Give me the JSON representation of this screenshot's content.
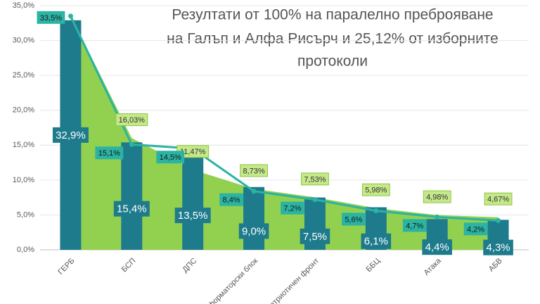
{
  "chart_data": {
    "type": "combo",
    "title": [
      "Резултати от 100% на паралелно преброяване",
      "на Галъп и Алфа Рисърч и 25,12% от изборните",
      "протоколи"
    ],
    "categories": [
      "ГЕРБ",
      "БСП",
      "ДПС",
      "Реформаторски блок",
      "Патриотичен фронт",
      "ББЦ",
      "Атака",
      "АБВ"
    ],
    "ylim": [
      0,
      35
    ],
    "yticks": [
      {
        "value": 0,
        "label": "0,0%"
      },
      {
        "value": 5,
        "label": "5,0%"
      },
      {
        "value": 10,
        "label": "10,0%"
      },
      {
        "value": 15,
        "label": "15,0%"
      },
      {
        "value": 20,
        "label": "20,0%"
      },
      {
        "value": 25,
        "label": "25,0%"
      },
      {
        "value": 30,
        "label": "30,0%"
      },
      {
        "value": 35,
        "label": "35,0%"
      }
    ],
    "series": [
      {
        "kind": "area",
        "color": "#92d050",
        "values": [
          33.6,
          16.03,
          11.47,
          8.73,
          7.53,
          5.98,
          4.98,
          4.67
        ],
        "value_labels": [
          null,
          "16,03%",
          "11,47%",
          "8,73%",
          "7,53%",
          "5,98%",
          "4,98%",
          "4,67%"
        ]
      },
      {
        "kind": "bar",
        "color": "#1e7b8c",
        "values": [
          32.9,
          15.4,
          13.5,
          9.0,
          7.5,
          6.1,
          4.4,
          4.3
        ],
        "value_labels": [
          "32,9%",
          "15,4%",
          "13,5%",
          "9,0%",
          "7,5%",
          "6,1%",
          "4,4%",
          "4,3%"
        ]
      },
      {
        "kind": "line",
        "color": "#2bb3a3",
        "values": [
          33.5,
          15.1,
          14.5,
          8.4,
          7.2,
          5.6,
          4.7,
          4.2
        ],
        "value_labels": [
          "33,5%",
          "15,1%",
          "14,5%",
          "8,4%",
          "7,2%",
          "5,6%",
          "4,7%",
          "4,2%"
        ]
      }
    ]
  }
}
